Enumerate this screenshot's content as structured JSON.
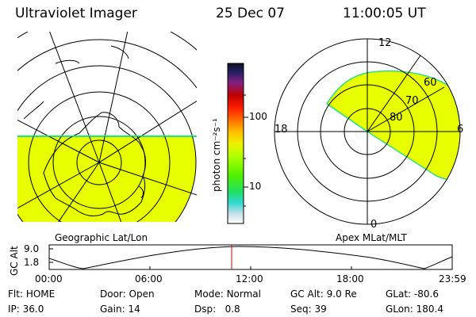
{
  "header": {
    "instrument": "Ultraviolet Imager",
    "date": "25 Dec 07",
    "time": "11:00:05 UT"
  },
  "geographic_panel": {
    "label": "Geographic Lat/Lon"
  },
  "apex_panel": {
    "label": "Apex MLat/MLT",
    "mlt_labels": {
      "top": "12",
      "left": "18",
      "right": "6",
      "bottom": "0"
    },
    "mlat_labels": [
      "60",
      "70",
      "80"
    ]
  },
  "colorbar": {
    "unit_label": "photon cm⁻²s⁻¹",
    "ticks": [
      "100",
      "10"
    ]
  },
  "altitude_plot": {
    "ylabel": "GC Alt",
    "y_ticks": [
      "9.0",
      "1.8"
    ],
    "x_ticks": [
      "00:00",
      "06:00",
      "12:00",
      "18:00",
      "23:59"
    ]
  },
  "status": {
    "row1": [
      {
        "label": "Flt:",
        "value": "HOME"
      },
      {
        "label": "Door:",
        "value": "Open"
      },
      {
        "label": "Mode:",
        "value": "Normal"
      },
      {
        "label": "GC Alt:",
        "value": "9.0 Re"
      },
      {
        "label": "GLat:",
        "value": "-80.6"
      }
    ],
    "row2": [
      {
        "label": "IP:",
        "value": "36.0"
      },
      {
        "label": "Gain:",
        "value": "14"
      },
      {
        "label": "Dsp:",
        "value": "0.8"
      },
      {
        "label": "Seq:",
        "value": "39"
      },
      {
        "label": "GLon:",
        "value": "180.4"
      }
    ]
  },
  "colors": {
    "emission": "#e8ff00",
    "emission_edge": "#33dd88",
    "cursor": "#dd0000"
  }
}
